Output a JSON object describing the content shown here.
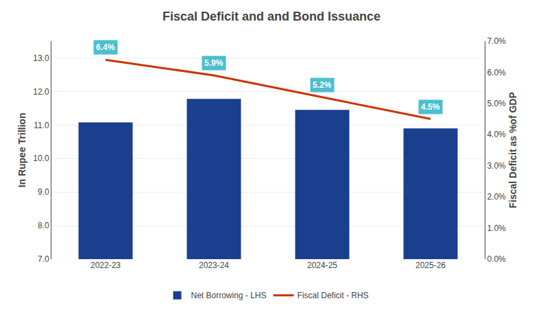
{
  "chart_data": {
    "type": "bar",
    "title": "Fiscal Deficit and and Bond Issuance",
    "categories": [
      "2022-23",
      "2023-24",
      "2024-25",
      "2025-26"
    ],
    "series": [
      {
        "name": "Net Borrowing - LHS",
        "type": "bar",
        "color": "#1B3F8F",
        "values": [
          11.08,
          11.78,
          11.45,
          10.9
        ]
      },
      {
        "name": "Fiscal Deficit - RHS",
        "type": "line",
        "color": "#CC3300",
        "axis": "y2",
        "values": [
          6.4,
          5.9,
          5.2,
          4.5
        ],
        "value_labels": [
          "6.4%",
          "5.9%",
          "5.2%",
          "4.5%"
        ],
        "data_labels": true
      }
    ],
    "ylabel": "In Rupee Trillion",
    "y2label": "Fiscal Deficit as %of GDP",
    "ylim": [
      7.0,
      13.5
    ],
    "yticks": [
      {
        "value": 7.0,
        "label": "7.0"
      },
      {
        "value": 8.0,
        "label": "8.0"
      },
      {
        "value": 9.0,
        "label": "9.0"
      },
      {
        "value": 10.0,
        "label": "10.0"
      },
      {
        "value": 11.0,
        "label": "11.0"
      },
      {
        "value": 12.0,
        "label": "12.0"
      },
      {
        "value": 13.0,
        "label": "13.0"
      }
    ],
    "y2lim": [
      0.0,
      7.0
    ],
    "y2ticks": [
      {
        "value": 0.0,
        "label": "0.0%"
      },
      {
        "value": 1.0,
        "label": "1.0%"
      },
      {
        "value": 2.0,
        "label": "2.0%"
      },
      {
        "value": 3.0,
        "label": "3.0%"
      },
      {
        "value": 4.0,
        "label": "4.0%"
      },
      {
        "value": 5.0,
        "label": "5.0%"
      },
      {
        "value": 6.0,
        "label": "6.0%"
      },
      {
        "value": 7.0,
        "label": "7.0%"
      }
    ],
    "grid": true,
    "legend": "bottom"
  }
}
